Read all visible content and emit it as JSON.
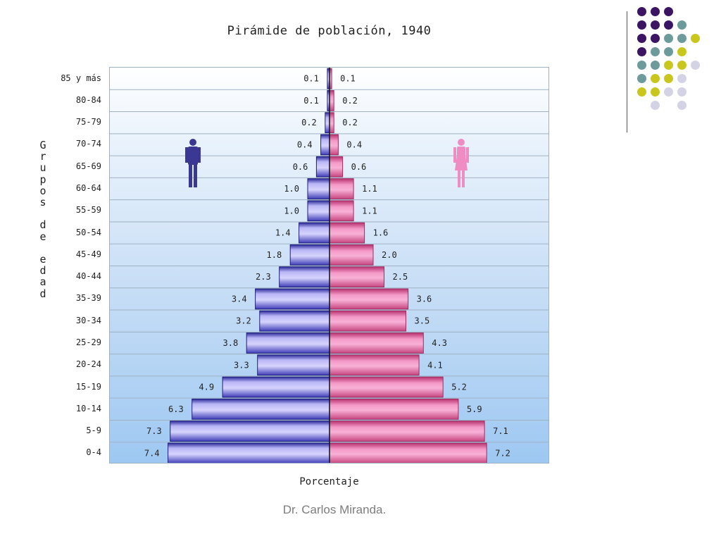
{
  "chart_data": {
    "type": "bar",
    "title": "Pirámide de población, 1940",
    "xlabel": "Porcentaje",
    "ylabel": "Grupos de edad",
    "categories": [
      "85 y más",
      "80-84",
      "75-79",
      "70-74",
      "65-69",
      "60-64",
      "55-59",
      "50-54",
      "45-49",
      "40-44",
      "35-39",
      "30-34",
      "25-29",
      "20-24",
      "15-19",
      "10-14",
      "5-9",
      "0-4"
    ],
    "series": [
      {
        "values": [
          0.1,
          0.1,
          0.2,
          0.4,
          0.6,
          1.0,
          1.0,
          1.4,
          1.8,
          2.3,
          3.4,
          3.2,
          3.8,
          3.3,
          4.9,
          6.3,
          7.3,
          7.4
        ],
        "color": "#5e5bd0"
      },
      {
        "values": [
          0.1,
          0.2,
          0.2,
          0.4,
          0.6,
          1.1,
          1.1,
          1.6,
          2.0,
          2.5,
          3.6,
          3.5,
          4.3,
          4.1,
          5.2,
          5.9,
          7.1,
          7.2
        ],
        "color": "#e07aac"
      }
    ],
    "xlim": [
      -10,
      10
    ],
    "grid": true
  },
  "icons": {
    "male": "male-figure-icon",
    "female": "female-figure-icon"
  },
  "colors": {
    "male_bar": "#5e5bd0",
    "female_bar": "#e07aac",
    "male_icon": "#3b3894",
    "female_icon": "#f08cc4"
  },
  "credit": "Dr. Carlos Miranda."
}
